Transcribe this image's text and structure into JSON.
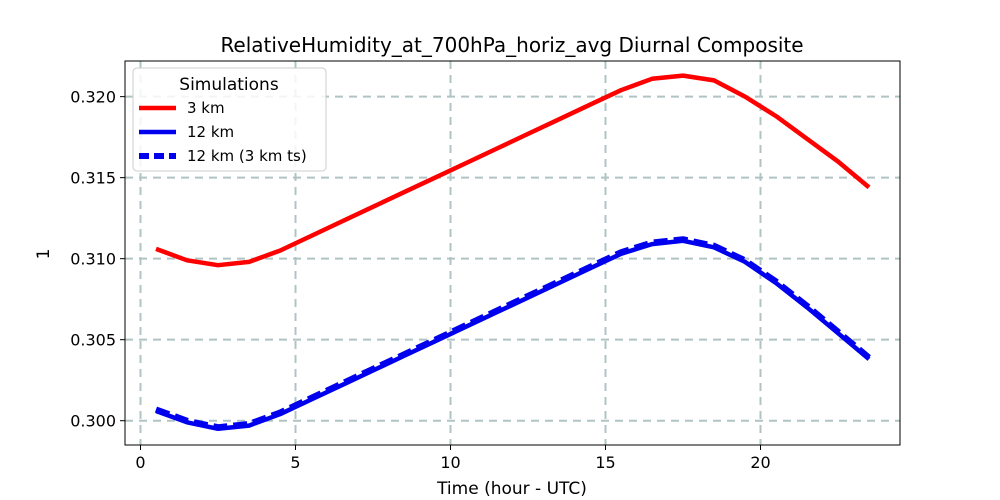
{
  "chart_data": {
    "type": "line",
    "title": "RelativeHumidity_at_700hPa_horiz_avg Diurnal Composite",
    "xlabel": "Time (hour - UTC)",
    "ylabel": "1",
    "xlim": [
      -0.5,
      24.5
    ],
    "ylim": [
      0.2985,
      0.3222
    ],
    "xticks": [
      0,
      5,
      10,
      15,
      20
    ],
    "xtick_labels": [
      "0",
      "5",
      "10",
      "15",
      "20"
    ],
    "yticks": [
      0.3,
      0.305,
      0.31,
      0.315,
      0.32
    ],
    "ytick_labels": [
      "0.300",
      "0.305",
      "0.310",
      "0.315",
      "0.320"
    ],
    "grid": true,
    "legend": {
      "title": "Simulations",
      "placement": "upper-left"
    },
    "x": [
      0.5,
      1.5,
      2.5,
      3.5,
      4.5,
      5.5,
      6.5,
      7.5,
      8.5,
      9.5,
      10.5,
      11.5,
      12.5,
      13.5,
      14.5,
      15.5,
      16.5,
      17.5,
      18.5,
      19.5,
      20.5,
      21.5,
      22.5,
      23.5
    ],
    "series": [
      {
        "name": "3 km",
        "color": "#ff0000",
        "style": "solid",
        "values": [
          0.3106,
          0.3099,
          0.3096,
          0.3098,
          0.3105,
          0.3114,
          0.3123,
          0.3132,
          0.3141,
          0.315,
          0.3159,
          0.3168,
          0.3177,
          0.3186,
          0.3195,
          0.3204,
          0.3211,
          0.3213,
          0.321,
          0.32,
          0.3188,
          0.3174,
          0.316,
          0.3144
        ]
      },
      {
        "name": "12 km",
        "color": "#0000ee",
        "style": "solid",
        "values": [
          0.3006,
          0.2999,
          0.2995,
          0.2997,
          0.3004,
          0.3013,
          0.3022,
          0.3031,
          0.304,
          0.3049,
          0.3058,
          0.3067,
          0.3076,
          0.3085,
          0.3094,
          0.3103,
          0.3109,
          0.3111,
          0.3107,
          0.3098,
          0.3085,
          0.307,
          0.3054,
          0.3038
        ]
      },
      {
        "name": "12 km (3 km ts)",
        "color": "#0000ee",
        "style": "dashed",
        "values": [
          0.3007,
          0.3,
          0.2996,
          0.2998,
          0.3005,
          0.3014,
          0.3023,
          0.3032,
          0.3041,
          0.305,
          0.3059,
          0.3068,
          0.3077,
          0.3086,
          0.3095,
          0.3104,
          0.311,
          0.3112,
          0.3108,
          0.3099,
          0.3086,
          0.3071,
          0.3055,
          0.3039
        ]
      }
    ]
  }
}
